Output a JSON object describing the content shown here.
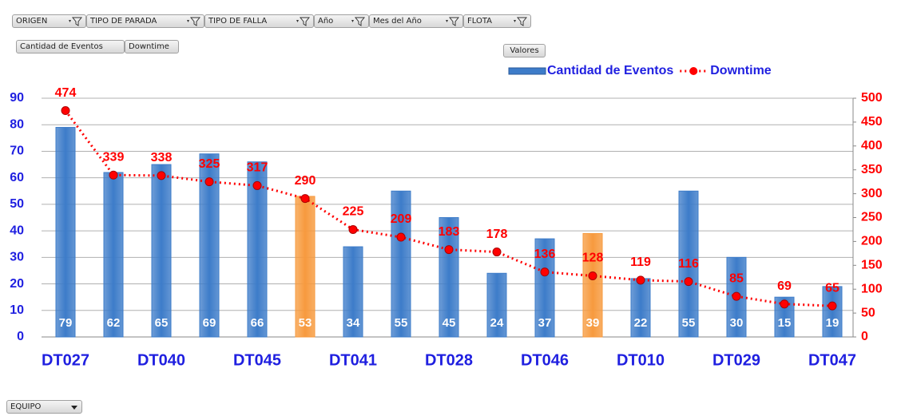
{
  "filters": [
    "ORIGEN",
    "TIPO DE PARADA",
    "TIPO DE FALLA",
    "Año",
    "Mes del Año",
    "FLOTA"
  ],
  "value_fields": [
    "Cantidad de Eventos",
    "Downtime"
  ],
  "values_button": "Valores",
  "axis_field": "EQUIPO",
  "chart_data": {
    "type": "bar",
    "categories": [
      "DT027",
      null,
      "DT040",
      null,
      "DT045",
      null,
      "DT041",
      null,
      "DT028",
      null,
      "DT046",
      null,
      "DT010",
      null,
      "DT029",
      null,
      "DT047"
    ],
    "series": [
      {
        "name": "Cantidad de Eventos",
        "type": "bar",
        "color": "#3d7cc9",
        "colors": [
          "#3d7cc9",
          "#3d7cc9",
          "#3d7cc9",
          "#3d7cc9",
          "#3d7cc9",
          "#f79a3e",
          "#3d7cc9",
          "#3d7cc9",
          "#3d7cc9",
          "#3d7cc9",
          "#3d7cc9",
          "#f79a3e",
          "#3d7cc9",
          "#3d7cc9",
          "#3d7cc9",
          "#3d7cc9",
          "#3d7cc9"
        ],
        "values": [
          79,
          62,
          65,
          69,
          66,
          53,
          34,
          55,
          45,
          24,
          37,
          39,
          22,
          55,
          30,
          15,
          19
        ]
      },
      {
        "name": "Downtime",
        "type": "line",
        "axis": "y2",
        "color": "#ff0000",
        "values": [
          474,
          339,
          338,
          325,
          317,
          290,
          225,
          209,
          183,
          178,
          136,
          128,
          119,
          116,
          85,
          69,
          65
        ]
      }
    ],
    "ylim": [
      0,
      90
    ],
    "yticks": [
      0,
      10,
      20,
      30,
      40,
      50,
      60,
      70,
      80,
      90
    ],
    "y2lim": [
      0,
      500
    ],
    "y2ticks": [
      0,
      50,
      100,
      150,
      200,
      250,
      300,
      350,
      400,
      450,
      500
    ],
    "grid": true,
    "legend": "top-right"
  }
}
